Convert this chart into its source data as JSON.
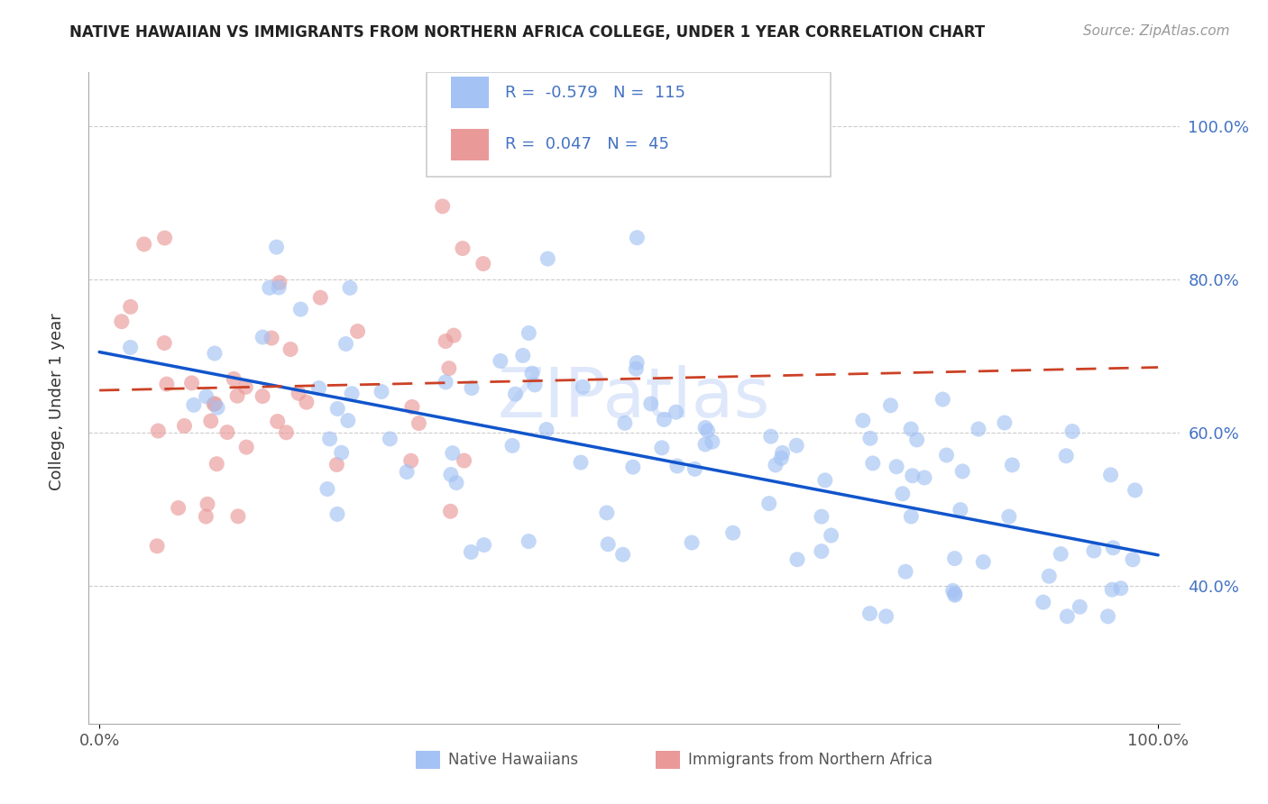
{
  "title": "NATIVE HAWAIIAN VS IMMIGRANTS FROM NORTHERN AFRICA COLLEGE, UNDER 1 YEAR CORRELATION CHART",
  "source": "Source: ZipAtlas.com",
  "ylabel": "College, Under 1 year",
  "x_min": 0.0,
  "x_max": 100.0,
  "y_min": 22.0,
  "y_max": 107.0,
  "y_tick_values": [
    40.0,
    60.0,
    80.0,
    100.0
  ],
  "y_tick_labels": [
    "40.0%",
    "60.0%",
    "80.0%",
    "100.0%"
  ],
  "x_tick_values": [
    0.0,
    100.0
  ],
  "x_tick_labels": [
    "0.0%",
    "100.0%"
  ],
  "blue_R": -0.579,
  "blue_N": 115,
  "pink_R": 0.047,
  "pink_N": 45,
  "blue_color": "#a4c2f4",
  "pink_color": "#ea9999",
  "blue_line_color": "#1155cc",
  "pink_line_color": "#cc4125",
  "blue_marker_color": "#6d9eeb",
  "pink_marker_color": "#e06666",
  "legend_label_blue": "Native Hawaiians",
  "legend_label_pink": "Immigrants from Northern Africa",
  "tick_color": "#4472c4",
  "grid_color": "#cccccc",
  "watermark_color": "#c9daf8",
  "blue_line_start_y": 70.5,
  "blue_line_end_y": 44.0,
  "pink_line_start_y": 65.5,
  "pink_line_end_y": 68.5
}
